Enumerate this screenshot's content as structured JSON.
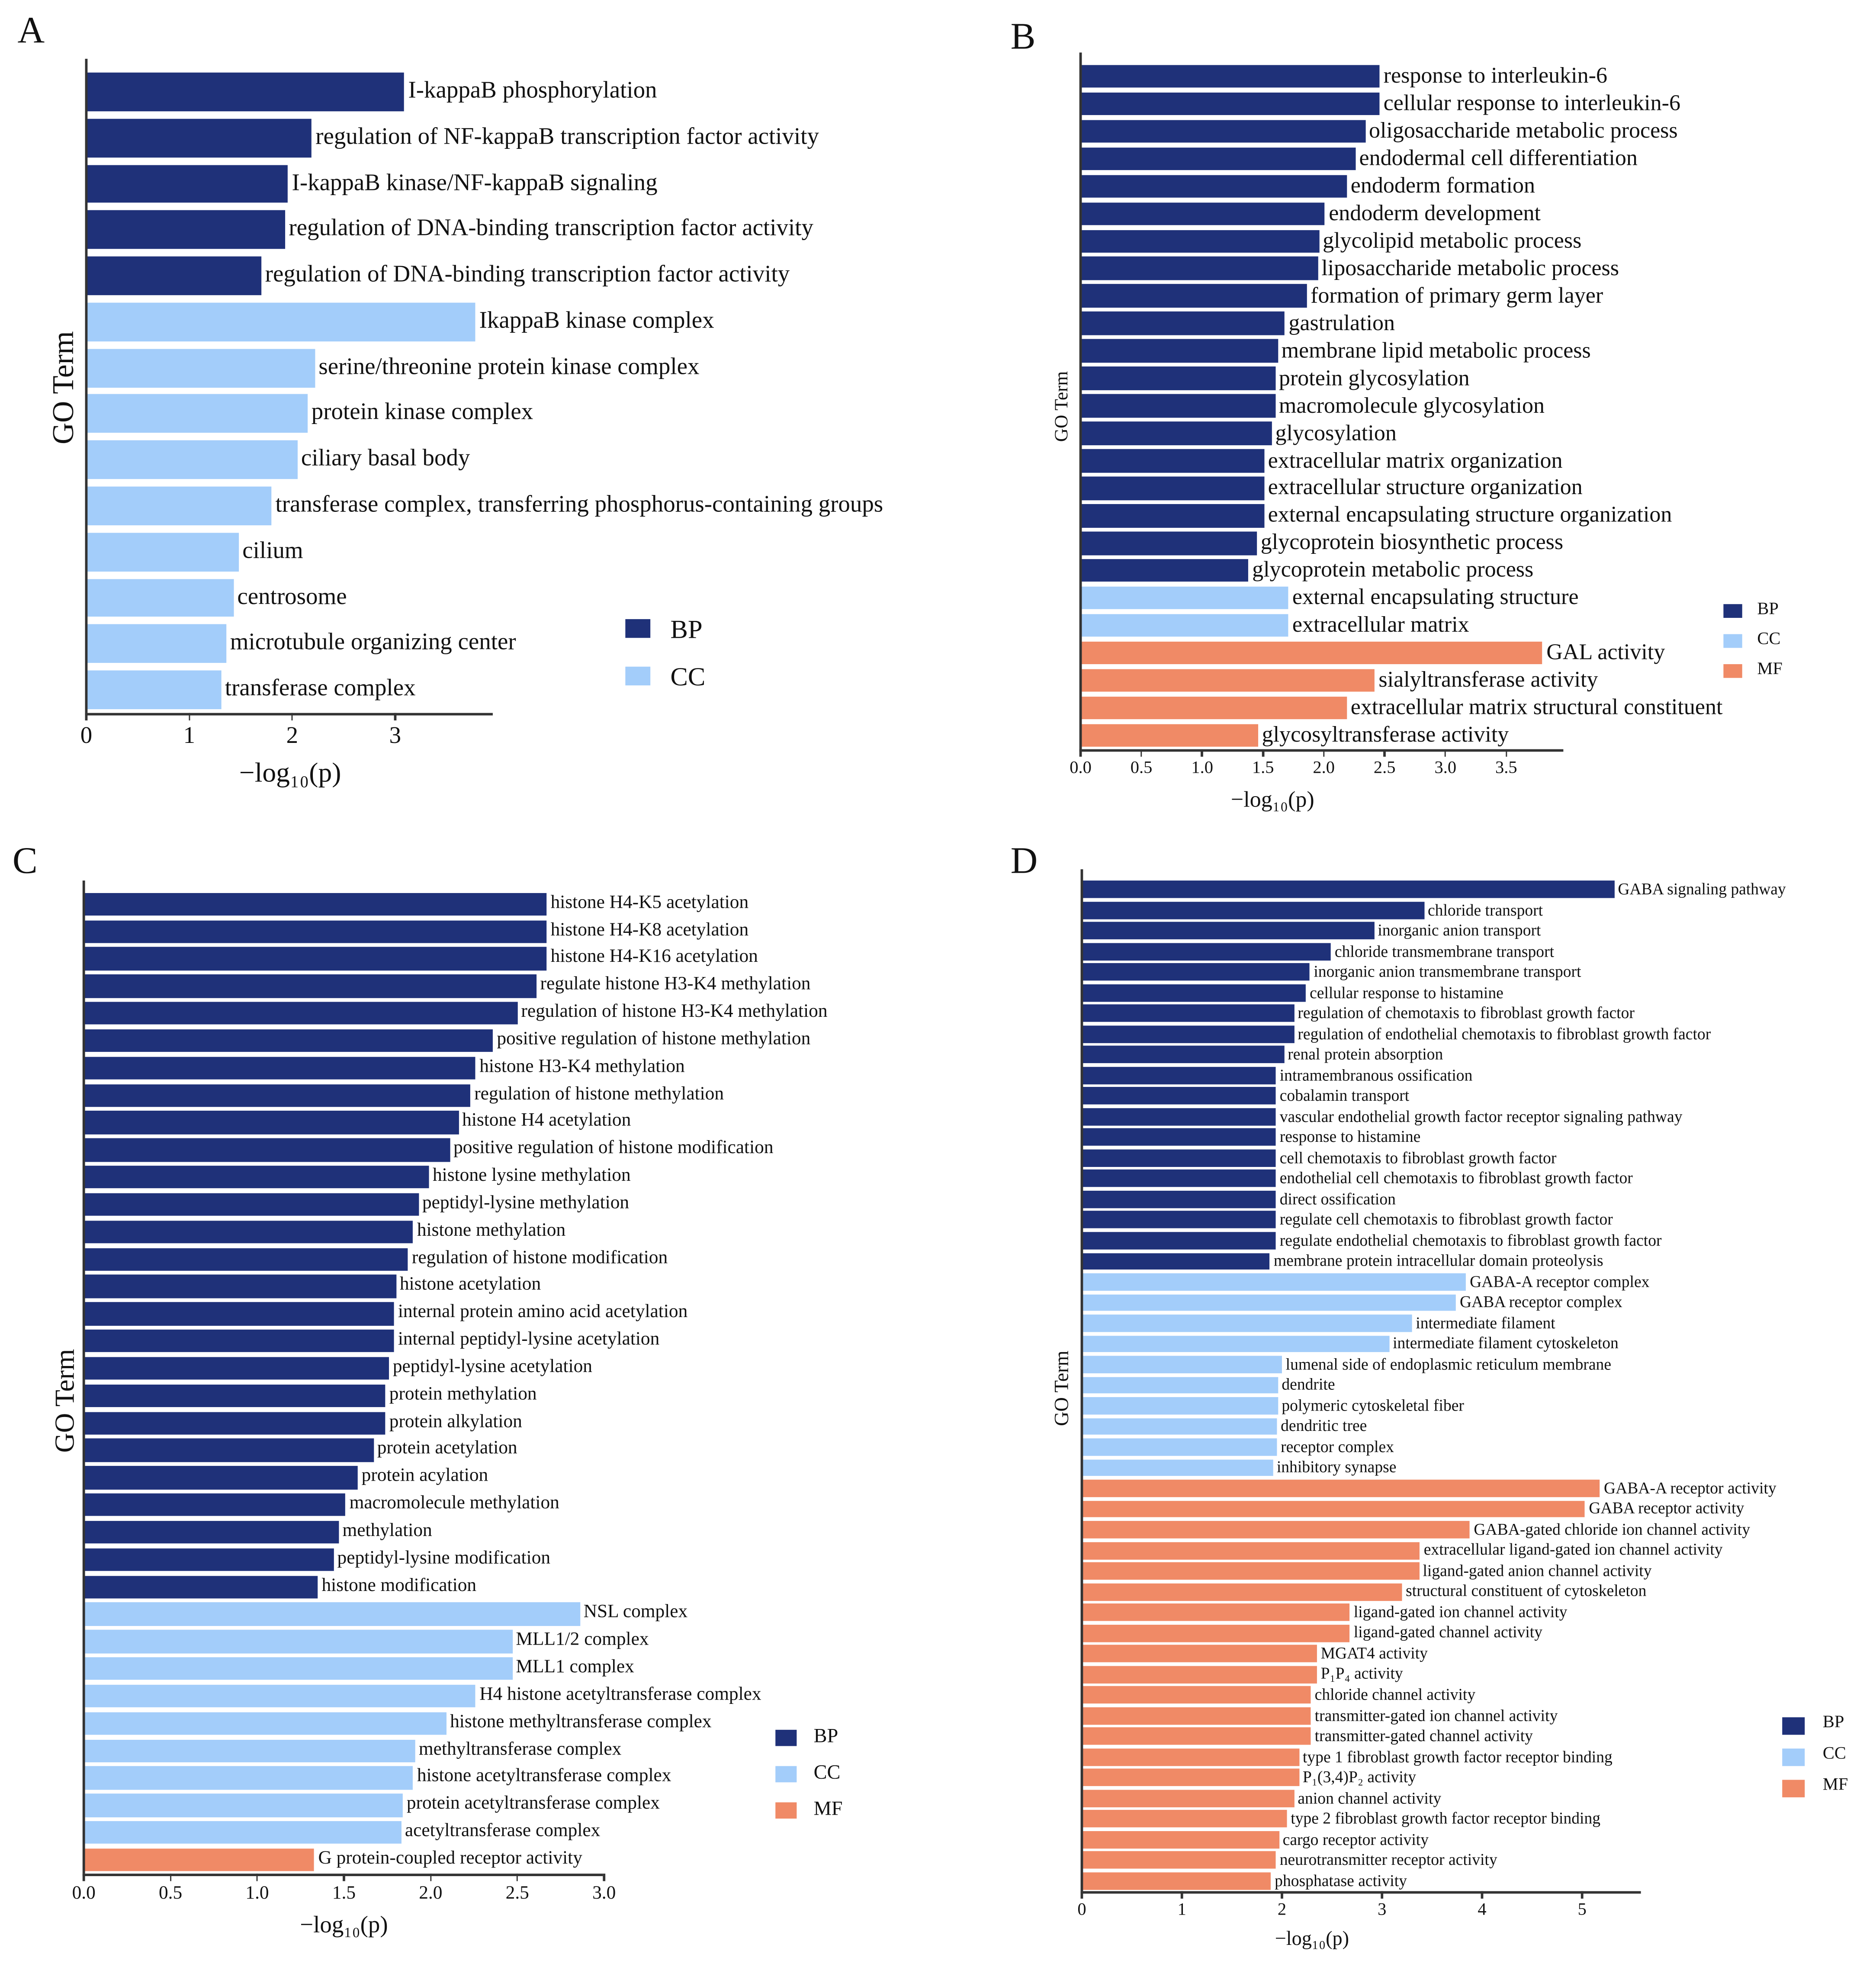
{
  "colors": {
    "BP": "#1f3179",
    "CC": "#a3cdfa",
    "MF": "#f08a66"
  },
  "chart_data": [
    {
      "panel": "A",
      "type": "bar",
      "orientation": "horizontal",
      "ylabel": "GO Term",
      "xlabel": "−log₁₀(p)",
      "xlim": [
        0,
        3.96
      ],
      "xticks": [
        "0",
        "1",
        "2",
        "3"
      ],
      "xtick_values": [
        0,
        1,
        2,
        3
      ],
      "legend": [
        "BP",
        "CC"
      ],
      "legend_position": "bottom-right",
      "bars": [
        {
          "label": "I-kappaB phosphorylation",
          "category": "BP",
          "value": 3.09
        },
        {
          "label": "regulation of NF-kappaB transcription factor activity",
          "category": "BP",
          "value": 2.19
        },
        {
          "label": "I-kappaB kinase/NF-kappaB signaling",
          "category": "BP",
          "value": 1.96
        },
        {
          "label": "regulation of DNA-binding transcription factor activity",
          "category": "BP",
          "value": 1.93
        },
        {
          "label": "regulation of DNA-binding transcription factor activity",
          "category": "BP",
          "value": 1.7
        },
        {
          "label": "IkappaB kinase complex",
          "category": "CC",
          "value": 3.78
        },
        {
          "label": "serine/threonine protein kinase complex",
          "category": "CC",
          "value": 2.22
        },
        {
          "label": "protein kinase complex",
          "category": "CC",
          "value": 2.15
        },
        {
          "label": "ciliary basal body",
          "category": "CC",
          "value": 2.05
        },
        {
          "label": "transferase complex, transferring phosphorus-containing groups",
          "category": "CC",
          "value": 1.8
        },
        {
          "label": "cilium",
          "category": "CC",
          "value": 1.48
        },
        {
          "label": "centrosome",
          "category": "CC",
          "value": 1.43
        },
        {
          "label": "microtubule organizing center",
          "category": "CC",
          "value": 1.36
        },
        {
          "label": "transferase complex",
          "category": "CC",
          "value": 1.31
        }
      ]
    },
    {
      "panel": "B",
      "type": "bar",
      "orientation": "horizontal",
      "ylabel": "GO Term",
      "xlabel": "−log₁₀(p)",
      "xlim": [
        0,
        3.98
      ],
      "xticks": [
        "0.0",
        "0.5",
        "1.0",
        "1.5",
        "2.0",
        "2.5",
        "3.0",
        "3.5"
      ],
      "xtick_values": [
        0,
        0.5,
        1,
        1.5,
        2,
        2.5,
        3,
        3.5
      ],
      "legend": [
        "BP",
        "CC",
        "MF"
      ],
      "legend_position": "right",
      "bars": [
        {
          "label": "response to interleukin-6",
          "category": "BP",
          "value": 2.46
        },
        {
          "label": "cellular response to interleukin-6",
          "category": "BP",
          "value": 2.46
        },
        {
          "label": "oligosaccharide metabolic process",
          "category": "BP",
          "value": 2.34
        },
        {
          "label": "endodermal cell differentiation",
          "category": "BP",
          "value": 2.26
        },
        {
          "label": "endoderm formation",
          "category": "BP",
          "value": 2.19
        },
        {
          "label": "endoderm development",
          "category": "BP",
          "value": 2.01
        },
        {
          "label": "glycolipid metabolic process",
          "category": "BP",
          "value": 1.96
        },
        {
          "label": "liposaccharide metabolic process",
          "category": "BP",
          "value": 1.95
        },
        {
          "label": "formation of primary germ layer",
          "category": "BP",
          "value": 1.86
        },
        {
          "label": "gastrulation",
          "category": "BP",
          "value": 1.68
        },
        {
          "label": "membrane lipid metabolic process",
          "category": "BP",
          "value": 1.62
        },
        {
          "label": "protein glycosylation",
          "category": "BP",
          "value": 1.6
        },
        {
          "label": "macromolecule glycosylation",
          "category": "BP",
          "value": 1.6
        },
        {
          "label": "glycosylation",
          "category": "BP",
          "value": 1.57
        },
        {
          "label": "extracellular matrix organization",
          "category": "BP",
          "value": 1.51
        },
        {
          "label": "extracellular structure organization",
          "category": "BP",
          "value": 1.51
        },
        {
          "label": "external encapsulating structure organization",
          "category": "BP",
          "value": 1.51
        },
        {
          "label": "glycoprotein biosynthetic process",
          "category": "BP",
          "value": 1.45
        },
        {
          "label": "glycoprotein metabolic process",
          "category": "BP",
          "value": 1.38
        },
        {
          "label": "external encapsulating structure",
          "category": "CC",
          "value": 1.71
        },
        {
          "label": "extracellular matrix",
          "category": "CC",
          "value": 1.71
        },
        {
          "label": "GAL activity",
          "category": "MF",
          "value": 3.8
        },
        {
          "label": "sialyltransferase activity",
          "category": "MF",
          "value": 2.42
        },
        {
          "label": "extracellular matrix structural constituent",
          "category": "MF",
          "value": 2.19
        },
        {
          "label": "glycosyltransferase activity",
          "category": "MF",
          "value": 1.46
        }
      ]
    },
    {
      "panel": "C",
      "type": "bar",
      "orientation": "horizontal",
      "ylabel": "GO Term",
      "xlabel": "−log₁₀(p)",
      "xlim": [
        0,
        3.0
      ],
      "xticks": [
        "0.0",
        "0.5",
        "1.0",
        "1.5",
        "2.0",
        "2.5",
        "3.0"
      ],
      "xtick_values": [
        0,
        0.5,
        1,
        1.5,
        2,
        2.5,
        3
      ],
      "legend": [
        "BP",
        "CC",
        "MF"
      ],
      "legend_position": "bottom-right",
      "bars": [
        {
          "label": "histone H4-K5 acetylation",
          "category": "BP",
          "value": 2.67
        },
        {
          "label": "histone H4-K8 acetylation",
          "category": "BP",
          "value": 2.67
        },
        {
          "label": "histone H4-K16 acetylation",
          "category": "BP",
          "value": 2.67
        },
        {
          "label": "regulate histone H3-K4 methylation",
          "category": "BP",
          "value": 2.61
        },
        {
          "label": "regulation of histone H3-K4 methylation",
          "category": "BP",
          "value": 2.5
        },
        {
          "label": "positive regulation of histone methylation",
          "category": "BP",
          "value": 2.36
        },
        {
          "label": "histone H3-K4 methylation",
          "category": "BP",
          "value": 2.26
        },
        {
          "label": "regulation of histone methylation",
          "category": "BP",
          "value": 2.23
        },
        {
          "label": "histone H4 acetylation",
          "category": "BP",
          "value": 2.16
        },
        {
          "label": "positive regulation of histone modification",
          "category": "BP",
          "value": 2.11
        },
        {
          "label": "histone lysine methylation",
          "category": "BP",
          "value": 1.99
        },
        {
          "label": "peptidyl-lysine methylation",
          "category": "BP",
          "value": 1.93
        },
        {
          "label": "histone methylation",
          "category": "BP",
          "value": 1.9
        },
        {
          "label": "regulation of histone modification",
          "category": "BP",
          "value": 1.87
        },
        {
          "label": "histone acetylation",
          "category": "BP",
          "value": 1.8
        },
        {
          "label": "internal protein amino acid acetylation",
          "category": "BP",
          "value": 1.79
        },
        {
          "label": "internal peptidyl-lysine acetylation",
          "category": "BP",
          "value": 1.79
        },
        {
          "label": "peptidyl-lysine acetylation",
          "category": "BP",
          "value": 1.76
        },
        {
          "label": "protein methylation",
          "category": "BP",
          "value": 1.74
        },
        {
          "label": "protein alkylation",
          "category": "BP",
          "value": 1.74
        },
        {
          "label": "protein acetylation",
          "category": "BP",
          "value": 1.67
        },
        {
          "label": "protein acylation",
          "category": "BP",
          "value": 1.58
        },
        {
          "label": "macromolecule methylation",
          "category": "BP",
          "value": 1.51
        },
        {
          "label": "methylation",
          "category": "BP",
          "value": 1.47
        },
        {
          "label": "peptidyl-lysine modification",
          "category": "BP",
          "value": 1.44
        },
        {
          "label": "histone modification",
          "category": "BP",
          "value": 1.35
        },
        {
          "label": "NSL complex",
          "category": "CC",
          "value": 2.86
        },
        {
          "label": "MLL1/2 complex",
          "category": "CC",
          "value": 2.47
        },
        {
          "label": "MLL1 complex",
          "category": "CC",
          "value": 2.47
        },
        {
          "label": "H4 histone acetyltransferase complex",
          "category": "CC",
          "value": 2.26
        },
        {
          "label": "histone methyltransferase complex",
          "category": "CC",
          "value": 2.09
        },
        {
          "label": "methyltransferase complex",
          "category": "CC",
          "value": 1.91
        },
        {
          "label": "histone acetyltransferase complex",
          "category": "CC",
          "value": 1.9
        },
        {
          "label": "protein acetyltransferase complex",
          "category": "CC",
          "value": 1.84
        },
        {
          "label": "acetyltransferase complex",
          "category": "CC",
          "value": 1.83
        },
        {
          "label": "G protein-coupled receptor activity",
          "category": "MF",
          "value": 1.33
        }
      ]
    },
    {
      "panel": "D",
      "type": "bar",
      "orientation": "horizontal",
      "ylabel": "GO Term",
      "xlabel": "−log₁₀(p)",
      "xlim": [
        0,
        5.6
      ],
      "xticks": [
        "0",
        "1",
        "2",
        "3",
        "4",
        "5"
      ],
      "xtick_values": [
        0,
        1,
        2,
        3,
        4,
        5
      ],
      "legend": [
        "BP",
        "CC",
        "MF"
      ],
      "legend_position": "bottom-right",
      "bars": [
        {
          "label": "GABA signaling pathway",
          "category": "BP",
          "value": 5.32
        },
        {
          "label": "chloride transport",
          "category": "BP",
          "value": 3.42
        },
        {
          "label": "inorganic anion transport",
          "category": "BP",
          "value": 2.92
        },
        {
          "label": "chloride transmembrane transport",
          "category": "BP",
          "value": 2.49
        },
        {
          "label": "inorganic anion transmembrane transport",
          "category": "BP",
          "value": 2.28
        },
        {
          "label": "cellular response to histamine",
          "category": "BP",
          "value": 2.24
        },
        {
          "label": "regulation of chemotaxis to fibroblast growth factor",
          "category": "BP",
          "value": 2.12
        },
        {
          "label": "regulation of endothelial chemotaxis to fibroblast growth factor",
          "category": "BP",
          "value": 2.12
        },
        {
          "label": "renal protein absorption",
          "category": "BP",
          "value": 2.02
        },
        {
          "label": "intramembranous ossification",
          "category": "BP",
          "value": 1.94
        },
        {
          "label": "cobalamin transport",
          "category": "BP",
          "value": 1.94
        },
        {
          "label": "vascular endothelial growth factor receptor signaling pathway",
          "category": "BP",
          "value": 1.94
        },
        {
          "label": "response to histamine",
          "category": "BP",
          "value": 1.94
        },
        {
          "label": "cell chemotaxis to fibroblast growth factor",
          "category": "BP",
          "value": 1.94
        },
        {
          "label": "endothelial cell chemotaxis to fibroblast growth factor",
          "category": "BP",
          "value": 1.94
        },
        {
          "label": "direct ossification",
          "category": "BP",
          "value": 1.94
        },
        {
          "label": "regulate cell chemotaxis to fibroblast growth factor",
          "category": "BP",
          "value": 1.94
        },
        {
          "label": "regulate endothelial chemotaxis to fibroblast growth factor",
          "category": "BP",
          "value": 1.94
        },
        {
          "label": "membrane protein intracellular domain proteolysis",
          "category": "BP",
          "value": 1.88
        },
        {
          "label": "GABA-A receptor complex",
          "category": "CC",
          "value": 3.84
        },
        {
          "label": "GABA receptor complex",
          "category": "CC",
          "value": 3.74
        },
        {
          "label": "intermediate filament",
          "category": "CC",
          "value": 3.3
        },
        {
          "label": "intermediate filament cytoskeleton",
          "category": "CC",
          "value": 3.07
        },
        {
          "label": "lumenal side of endoplasmic reticulum membrane",
          "category": "CC",
          "value": 2.0
        },
        {
          "label": "dendrite",
          "category": "CC",
          "value": 1.96
        },
        {
          "label": "polymeric cytoskeletal fiber",
          "category": "CC",
          "value": 1.96
        },
        {
          "label": "dendritic tree",
          "category": "CC",
          "value": 1.95
        },
        {
          "label": "receptor complex",
          "category": "CC",
          "value": 1.95
        },
        {
          "label": "inhibitory synapse",
          "category": "CC",
          "value": 1.91
        },
        {
          "label": "GABA-A receptor activity",
          "category": "MF",
          "value": 5.18
        },
        {
          "label": "GABA receptor activity",
          "category": "MF",
          "value": 5.03
        },
        {
          "label": "GABA-gated chloride ion channel activity",
          "category": "MF",
          "value": 3.88
        },
        {
          "label": "extracellular ligand-gated ion channel activity",
          "category": "MF",
          "value": 3.38
        },
        {
          "label": "ligand-gated anion channel activity",
          "category": "MF",
          "value": 3.37
        },
        {
          "label": "structural constituent of cytoskeleton",
          "category": "MF",
          "value": 3.2
        },
        {
          "label": "ligand-gated ion channel activity",
          "category": "MF",
          "value": 2.68
        },
        {
          "label": "ligand-gated channel activity",
          "category": "MF",
          "value": 2.68
        },
        {
          "label": "MGAT4 activity",
          "category": "MF",
          "value": 2.35
        },
        {
          "label": "P₁P₄ activity",
          "category": "MF",
          "value": 2.35
        },
        {
          "label": "chloride channel activity",
          "category": "MF",
          "value": 2.29
        },
        {
          "label": "transmitter-gated ion channel activity",
          "category": "MF",
          "value": 2.29
        },
        {
          "label": "transmitter-gated channel activity",
          "category": "MF",
          "value": 2.29
        },
        {
          "label": "type 1 fibroblast growth factor receptor binding",
          "category": "MF",
          "value": 2.17
        },
        {
          "label": "P₁(3,4)P₂ activity",
          "category": "MF",
          "value": 2.17
        },
        {
          "label": "anion channel activity",
          "category": "MF",
          "value": 2.12
        },
        {
          "label": "type 2 fibroblast growth factor receptor binding",
          "category": "MF",
          "value": 2.05
        },
        {
          "label": "cargo receptor activity",
          "category": "MF",
          "value": 1.97
        },
        {
          "label": "neurotransmitter receptor activity",
          "category": "MF",
          "value": 1.94
        },
        {
          "label": "phosphatase activity",
          "category": "MF",
          "value": 1.89
        }
      ]
    }
  ]
}
